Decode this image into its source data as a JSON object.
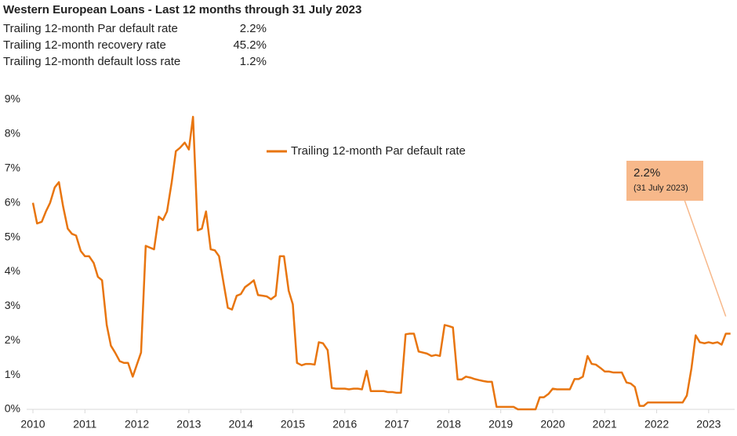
{
  "chart_data": {
    "type": "line",
    "title": "Western European Loans - Last 12 months through 31 July 2023",
    "summary": [
      {
        "label": "Trailing 12-month Par default rate",
        "value": "2.2%"
      },
      {
        "label": "Trailing 12-month recovery rate",
        "value": "45.2%"
      },
      {
        "label": "Trailing 12-month default loss rate",
        "value": "1.2%"
      }
    ],
    "annotation": {
      "text": "2.2%",
      "subtext": "(31 July 2023)"
    },
    "legend": "top-center",
    "xlim": [
      2010,
      2023.5
    ],
    "xticks": [
      2010,
      2011,
      2012,
      2013,
      2014,
      2015,
      2016,
      2017,
      2018,
      2019,
      2020,
      2021,
      2022,
      2023
    ],
    "ylim": [
      0,
      9
    ],
    "yticks": [
      {
        "value": 0,
        "label": "0%"
      },
      {
        "value": 1,
        "label": "1%"
      },
      {
        "value": 2,
        "label": "2%"
      },
      {
        "value": 3,
        "label": "3%"
      },
      {
        "value": 4,
        "label": "4%"
      },
      {
        "value": 5,
        "label": "5%"
      },
      {
        "value": 6,
        "label": "6%"
      },
      {
        "value": 7,
        "label": "7%"
      },
      {
        "value": 8,
        "label": "8%"
      },
      {
        "value": 9,
        "label": "9%"
      }
    ],
    "grid": false,
    "x": [
      2010,
      2010.08,
      2010.17,
      2010.25,
      2010.33,
      2010.42,
      2010.5,
      2010.58,
      2010.67,
      2010.75,
      2010.83,
      2010.92,
      2011,
      2011.08,
      2011.17,
      2011.25,
      2011.33,
      2011.42,
      2011.5,
      2011.58,
      2011.67,
      2011.75,
      2011.83,
      2011.92,
      2012,
      2012.08,
      2012.17,
      2012.25,
      2012.33,
      2012.42,
      2012.5,
      2012.58,
      2012.67,
      2012.75,
      2012.83,
      2012.92,
      2013,
      2013.08,
      2013.17,
      2013.25,
      2013.33,
      2013.42,
      2013.5,
      2013.58,
      2013.67,
      2013.75,
      2013.83,
      2013.92,
      2014,
      2014.08,
      2014.17,
      2014.25,
      2014.33,
      2014.42,
      2014.5,
      2014.58,
      2014.67,
      2014.75,
      2014.83,
      2014.92,
      2015,
      2015.08,
      2015.17,
      2015.25,
      2015.33,
      2015.42,
      2015.5,
      2015.58,
      2015.67,
      2015.75,
      2015.83,
      2015.92,
      2016,
      2016.08,
      2016.17,
      2016.25,
      2016.33,
      2016.42,
      2016.5,
      2016.58,
      2016.67,
      2016.75,
      2016.83,
      2016.92,
      2017,
      2017.08,
      2017.17,
      2017.25,
      2017.33,
      2017.42,
      2017.5,
      2017.58,
      2017.67,
      2017.75,
      2017.83,
      2017.92,
      2018,
      2018.08,
      2018.17,
      2018.25,
      2018.33,
      2018.42,
      2018.5,
      2018.58,
      2018.67,
      2018.75,
      2018.83,
      2018.92,
      2019,
      2019.08,
      2019.17,
      2019.25,
      2019.33,
      2019.42,
      2019.5,
      2019.58,
      2019.67,
      2019.75,
      2019.83,
      2019.92,
      2020,
      2020.08,
      2020.17,
      2020.25,
      2020.33,
      2020.42,
      2020.5,
      2020.58,
      2020.67,
      2020.75,
      2020.83,
      2020.92,
      2021,
      2021.08,
      2021.17,
      2021.25,
      2021.33,
      2021.42,
      2021.5,
      2021.58,
      2021.67,
      2021.75,
      2021.83,
      2021.92,
      2022,
      2022.08,
      2022.17,
      2022.25,
      2022.33,
      2022.42,
      2022.5,
      2022.58,
      2022.67,
      2022.75,
      2022.83,
      2022.92,
      2023,
      2023.08,
      2023.17,
      2023.25,
      2023.33,
      2023.42
    ],
    "series": [
      {
        "name": "Trailing 12-month Par default rate",
        "color": "#e8750f",
        "values": [
          6.0,
          5.4,
          5.45,
          5.75,
          6.0,
          6.45,
          6.6,
          5.9,
          5.25,
          5.1,
          5.05,
          4.6,
          4.45,
          4.45,
          4.25,
          3.85,
          3.75,
          2.45,
          1.85,
          1.65,
          1.4,
          1.35,
          1.35,
          0.95,
          1.3,
          1.65,
          4.75,
          4.7,
          4.65,
          5.6,
          5.5,
          5.75,
          6.6,
          7.5,
          7.6,
          7.75,
          7.55,
          8.5,
          5.2,
          5.25,
          5.75,
          4.65,
          4.62,
          4.45,
          3.65,
          2.95,
          2.9,
          3.3,
          3.35,
          3.55,
          3.65,
          3.75,
          3.32,
          3.3,
          3.28,
          3.2,
          3.3,
          4.45,
          4.45,
          3.45,
          3.05,
          1.35,
          1.28,
          1.32,
          1.32,
          1.3,
          1.95,
          1.92,
          1.72,
          0.62,
          0.6,
          0.6,
          0.6,
          0.58,
          0.6,
          0.6,
          0.58,
          1.12,
          0.53,
          0.53,
          0.53,
          0.53,
          0.5,
          0.5,
          0.48,
          0.48,
          2.18,
          2.2,
          2.2,
          1.68,
          1.65,
          1.62,
          1.55,
          1.58,
          1.55,
          2.45,
          2.42,
          2.38,
          0.87,
          0.87,
          0.95,
          0.92,
          0.88,
          0.85,
          0.82,
          0.8,
          0.8,
          0.07,
          0.07,
          0.07,
          0.07,
          0.07,
          0,
          0,
          0,
          0,
          0,
          0.35,
          0.35,
          0.45,
          0.6,
          0.58,
          0.58,
          0.58,
          0.58,
          0.88,
          0.88,
          0.95,
          1.55,
          1.32,
          1.3,
          1.2,
          1.1,
          1.1,
          1.07,
          1.07,
          1.07,
          0.78,
          0.75,
          0.65,
          0.1,
          0.1,
          0.2,
          0.2,
          0.2,
          0.2,
          0.2,
          0.2,
          0.2,
          0.2,
          0.2,
          0.4,
          1.2,
          2.15,
          1.95,
          1.92,
          1.95,
          1.92,
          1.95,
          1.88,
          2.2,
          2.2
        ]
      }
    ]
  }
}
